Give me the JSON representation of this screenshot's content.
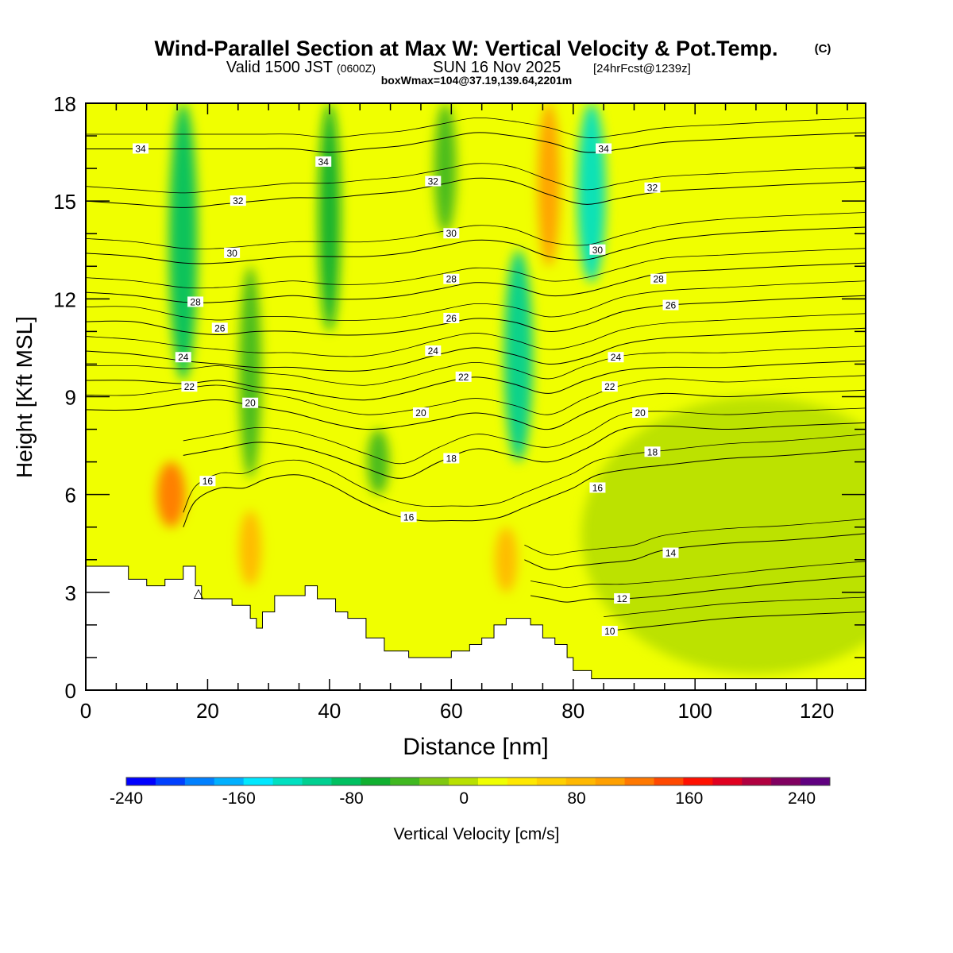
{
  "header": {
    "title": "Wind-Parallel Section at Max W: Vertical Velocity & Pot.Temp.",
    "copyright": "(C)",
    "valid_prefix": "Valid 1500 JST",
    "valid_utc": "(0600Z)",
    "valid_date": "SUN 16 Nov 2025",
    "forecast": "[24hrFcst@1239z]",
    "box_info": "boxWmax=104@37.19,139.64,2201m"
  },
  "chart_data": {
    "type": "heatmap",
    "title": "Wind-Parallel Section at Max W: Vertical Velocity & Pot.Temp.",
    "xlabel": "Distance [nm]",
    "ylabel": "Height [Kft MSL]",
    "xlim": [
      0,
      128
    ],
    "ylim": [
      0,
      18
    ],
    "x_ticks": [
      0,
      20,
      40,
      60,
      80,
      100,
      120
    ],
    "y_ticks": [
      0,
      3,
      6,
      9,
      12,
      15,
      18
    ],
    "colorbar": {
      "label": "Vertical Velocity [cm/s]",
      "min": -240,
      "max": 260,
      "step": 20,
      "tick_values": [
        -240,
        -160,
        -80,
        0,
        80,
        160,
        240
      ],
      "colors": [
        "#0000ff",
        "#0040ff",
        "#0080ff",
        "#00b0ff",
        "#00e8ff",
        "#00e0c0",
        "#00d090",
        "#00c060",
        "#10b030",
        "#40b820",
        "#80c810",
        "#b8e000",
        "#f0ff00",
        "#ffe800",
        "#ffd000",
        "#ffb800",
        "#ffa000",
        "#ff7800",
        "#ff4800",
        "#ff1000",
        "#e00020",
        "#b00040",
        "#800060",
        "#600080"
      ]
    },
    "vertical_velocity_features": [
      {
        "x": 16,
        "z_range": [
          9.5,
          18
        ],
        "w_cm_s": -100
      },
      {
        "x": 27,
        "z_range": [
          6.5,
          13
        ],
        "w_cm_s": -60
      },
      {
        "x": 40,
        "z_range": [
          11,
          18
        ],
        "w_cm_s": -70
      },
      {
        "x": 48,
        "z_range": [
          6,
          8
        ],
        "w_cm_s": -45
      },
      {
        "x": 59,
        "z_range": [
          14,
          18
        ],
        "w_cm_s": -60
      },
      {
        "x": 71,
        "z_range": [
          7,
          13.5
        ],
        "w_cm_s": -104
      },
      {
        "x": 83,
        "z_range": [
          12.5,
          18
        ],
        "w_cm_s": -140
      },
      {
        "x": 14,
        "z_range": [
          5,
          7
        ],
        "w_cm_s": 110
      },
      {
        "x": 27,
        "z_range": [
          3.2,
          5.5
        ],
        "w_cm_s": 70
      },
      {
        "x": 76,
        "z_range": [
          13,
          18
        ],
        "w_cm_s": 80
      },
      {
        "x": 69,
        "z_range": [
          3,
          5
        ],
        "w_cm_s": 60
      },
      {
        "x": 110,
        "z_range": [
          0.5,
          9
        ],
        "w_cm_s": -20
      }
    ],
    "terrain_profile": {
      "x": [
        0,
        4,
        7,
        10,
        13,
        16,
        18,
        19,
        21,
        24,
        26,
        27,
        28,
        29,
        31,
        34,
        36,
        38,
        41,
        43,
        46,
        49,
        53,
        57,
        60,
        63,
        65,
        67,
        69,
        71,
        73,
        75,
        77,
        79,
        80,
        83,
        90,
        100,
        110,
        128
      ],
      "z": [
        3.8,
        3.8,
        3.4,
        3.2,
        3.4,
        3.8,
        3.2,
        2.8,
        2.8,
        2.6,
        2.6,
        2.2,
        1.9,
        2.4,
        2.9,
        2.9,
        3.2,
        2.8,
        2.4,
        2.2,
        1.6,
        1.2,
        1.0,
        1.0,
        1.2,
        1.4,
        1.6,
        2.0,
        2.2,
        2.2,
        2.0,
        1.6,
        1.4,
        1.0,
        0.6,
        0.35,
        0.35,
        0.35,
        0.35,
        0.35
      ]
    },
    "terrain_marker": {
      "x": 18.5,
      "z": 3.0,
      "symbol": "△"
    },
    "potential_temperature": {
      "units": "deg C",
      "labelled_values": [
        10,
        12,
        14,
        16,
        18,
        20,
        22,
        24,
        26,
        28,
        30,
        32,
        34
      ],
      "contours": [
        {
          "value": 10,
          "x": [
            85,
            90,
            95,
            105,
            115,
            128
          ],
          "z": [
            1.8,
            1.9,
            2.0,
            2.2,
            2.3,
            2.4
          ]
        },
        {
          "value": 12,
          "x": [
            73,
            76,
            79,
            83,
            88,
            95,
            105,
            115,
            128
          ],
          "z": [
            2.9,
            2.8,
            2.7,
            2.8,
            2.8,
            2.9,
            3.1,
            3.3,
            3.5
          ]
        },
        {
          "value": 14,
          "x": [
            72,
            76,
            80,
            85,
            90,
            95,
            105,
            115,
            128
          ],
          "z": [
            4.0,
            3.7,
            3.8,
            3.9,
            4.0,
            4.3,
            4.5,
            4.6,
            4.8
          ]
        },
        {
          "value": 16,
          "x": [
            16,
            18,
            22,
            26,
            30,
            35,
            40,
            45,
            50,
            55,
            60,
            64,
            68,
            72,
            76,
            80,
            84,
            90,
            95,
            105,
            115,
            128
          ],
          "z": [
            5.0,
            5.8,
            6.2,
            6.2,
            6.5,
            6.6,
            6.3,
            5.8,
            5.4,
            5.2,
            5.2,
            5.2,
            5.3,
            5.6,
            5.9,
            6.2,
            6.6,
            6.8,
            6.9,
            7.1,
            7.2,
            7.4
          ]
        },
        {
          "value": 18,
          "x": [
            16,
            22,
            28,
            34,
            40,
            46,
            52,
            58,
            64,
            70,
            76,
            82,
            88,
            95,
            105,
            115,
            128
          ],
          "z": [
            7.2,
            7.4,
            7.6,
            7.5,
            7.2,
            6.8,
            6.5,
            7.0,
            7.4,
            7.2,
            7.0,
            7.4,
            8.0,
            8.1,
            8.0,
            8.1,
            8.2
          ]
        },
        {
          "value": 20,
          "x": [
            0,
            8,
            16,
            22,
            28,
            34,
            40,
            46,
            52,
            58,
            64,
            70,
            76,
            82,
            88,
            95,
            105,
            115,
            128
          ],
          "z": [
            8.6,
            8.6,
            8.8,
            8.9,
            8.7,
            8.5,
            8.2,
            8.0,
            8.1,
            8.3,
            8.5,
            8.3,
            8.0,
            8.5,
            8.9,
            9.1,
            9.0,
            9.1,
            9.2
          ]
        },
        {
          "value": 22,
          "x": [
            0,
            8,
            16,
            22,
            28,
            34,
            40,
            46,
            52,
            58,
            64,
            70,
            76,
            82,
            88,
            95,
            105,
            115,
            128
          ],
          "z": [
            9.5,
            9.5,
            9.4,
            9.5,
            9.3,
            9.2,
            9.0,
            8.9,
            9.1,
            9.4,
            9.6,
            9.4,
            9.1,
            9.5,
            9.8,
            9.9,
            9.9,
            10.0,
            10.1
          ]
        },
        {
          "value": 24,
          "x": [
            0,
            8,
            16,
            22,
            28,
            34,
            40,
            46,
            52,
            58,
            64,
            70,
            76,
            82,
            88,
            95,
            105,
            115,
            128
          ],
          "z": [
            10.4,
            10.3,
            10.1,
            10.0,
            9.9,
            9.9,
            9.8,
            9.8,
            10.0,
            10.3,
            10.5,
            10.3,
            10.0,
            10.2,
            10.6,
            10.8,
            10.9,
            11.0,
            11.1
          ]
        },
        {
          "value": 26,
          "x": [
            0,
            8,
            16,
            22,
            28,
            34,
            40,
            46,
            52,
            58,
            64,
            70,
            76,
            82,
            88,
            95,
            105,
            115,
            128
          ],
          "z": [
            11.3,
            11.3,
            11.0,
            10.9,
            11.0,
            11.0,
            10.9,
            10.9,
            11.0,
            11.2,
            11.4,
            11.3,
            11.0,
            11.2,
            11.6,
            11.8,
            11.9,
            12.0,
            12.1
          ]
        },
        {
          "value": 28,
          "x": [
            0,
            8,
            16,
            22,
            28,
            34,
            40,
            46,
            52,
            58,
            64,
            70,
            76,
            82,
            88,
            95,
            105,
            115,
            128
          ],
          "z": [
            12.2,
            12.1,
            11.9,
            11.9,
            12.0,
            12.1,
            12.0,
            12.0,
            12.1,
            12.3,
            12.5,
            12.4,
            12.1,
            12.2,
            12.5,
            12.8,
            12.9,
            13.0,
            13.1
          ]
        },
        {
          "value": 30,
          "x": [
            0,
            8,
            16,
            22,
            28,
            34,
            40,
            46,
            52,
            58,
            64,
            70,
            76,
            82,
            88,
            95,
            105,
            115,
            128
          ],
          "z": [
            13.4,
            13.3,
            13.1,
            13.1,
            13.2,
            13.3,
            13.3,
            13.3,
            13.4,
            13.6,
            13.8,
            13.7,
            13.3,
            13.2,
            13.5,
            13.8,
            14.0,
            14.1,
            14.2
          ]
        },
        {
          "value": 32,
          "x": [
            0,
            8,
            16,
            22,
            28,
            34,
            40,
            46,
            52,
            58,
            64,
            70,
            76,
            82,
            88,
            95,
            105,
            115,
            128
          ],
          "z": [
            15.0,
            14.9,
            14.8,
            14.9,
            15.0,
            15.1,
            15.1,
            15.2,
            15.3,
            15.5,
            15.7,
            15.6,
            15.2,
            14.9,
            15.1,
            15.3,
            15.4,
            15.5,
            15.6
          ]
        },
        {
          "value": 34,
          "x": [
            0,
            8,
            16,
            22,
            28,
            34,
            40,
            46,
            52,
            58,
            64,
            70,
            76,
            82,
            88,
            95,
            105,
            115,
            128
          ],
          "z": [
            16.6,
            16.6,
            16.6,
            16.6,
            16.6,
            16.6,
            16.5,
            16.6,
            16.7,
            16.9,
            17.1,
            17.0,
            16.8,
            16.5,
            16.6,
            16.8,
            16.9,
            17.0,
            17.1
          ]
        }
      ],
      "labels": [
        {
          "text": "34",
          "x": 9,
          "z": 16.6
        },
        {
          "text": "34",
          "x": 39,
          "z": 16.2
        },
        {
          "text": "34",
          "x": 85,
          "z": 16.6
        },
        {
          "text": "32",
          "x": 25,
          "z": 15.0
        },
        {
          "text": "32",
          "x": 57,
          "z": 15.6
        },
        {
          "text": "32",
          "x": 93,
          "z": 15.4
        },
        {
          "text": "30",
          "x": 24,
          "z": 13.4
        },
        {
          "text": "30",
          "x": 60,
          "z": 14.0
        },
        {
          "text": "30",
          "x": 84,
          "z": 13.5
        },
        {
          "text": "28",
          "x": 18,
          "z": 11.9
        },
        {
          "text": "28",
          "x": 60,
          "z": 12.6
        },
        {
          "text": "28",
          "x": 94,
          "z": 12.6
        },
        {
          "text": "26",
          "x": 22,
          "z": 11.1
        },
        {
          "text": "26",
          "x": 60,
          "z": 11.4
        },
        {
          "text": "26",
          "x": 96,
          "z": 11.8
        },
        {
          "text": "24",
          "x": 16,
          "z": 10.2
        },
        {
          "text": "24",
          "x": 57,
          "z": 10.4
        },
        {
          "text": "24",
          "x": 87,
          "z": 10.2
        },
        {
          "text": "22",
          "x": 17,
          "z": 9.3
        },
        {
          "text": "22",
          "x": 62,
          "z": 9.6
        },
        {
          "text": "22",
          "x": 86,
          "z": 9.3
        },
        {
          "text": "20",
          "x": 27,
          "z": 8.8
        },
        {
          "text": "20",
          "x": 55,
          "z": 8.5
        },
        {
          "text": "20",
          "x": 91,
          "z": 8.5
        },
        {
          "text": "18",
          "x": 60,
          "z": 7.1
        },
        {
          "text": "18",
          "x": 93,
          "z": 7.3
        },
        {
          "text": "16",
          "x": 20,
          "z": 6.4
        },
        {
          "text": "16",
          "x": 53,
          "z": 5.3
        },
        {
          "text": "16",
          "x": 84,
          "z": 6.2
        },
        {
          "text": "14",
          "x": 96,
          "z": 4.2
        },
        {
          "text": "12",
          "x": 88,
          "z": 2.8
        },
        {
          "text": "10",
          "x": 86,
          "z": 1.8
        }
      ]
    }
  }
}
